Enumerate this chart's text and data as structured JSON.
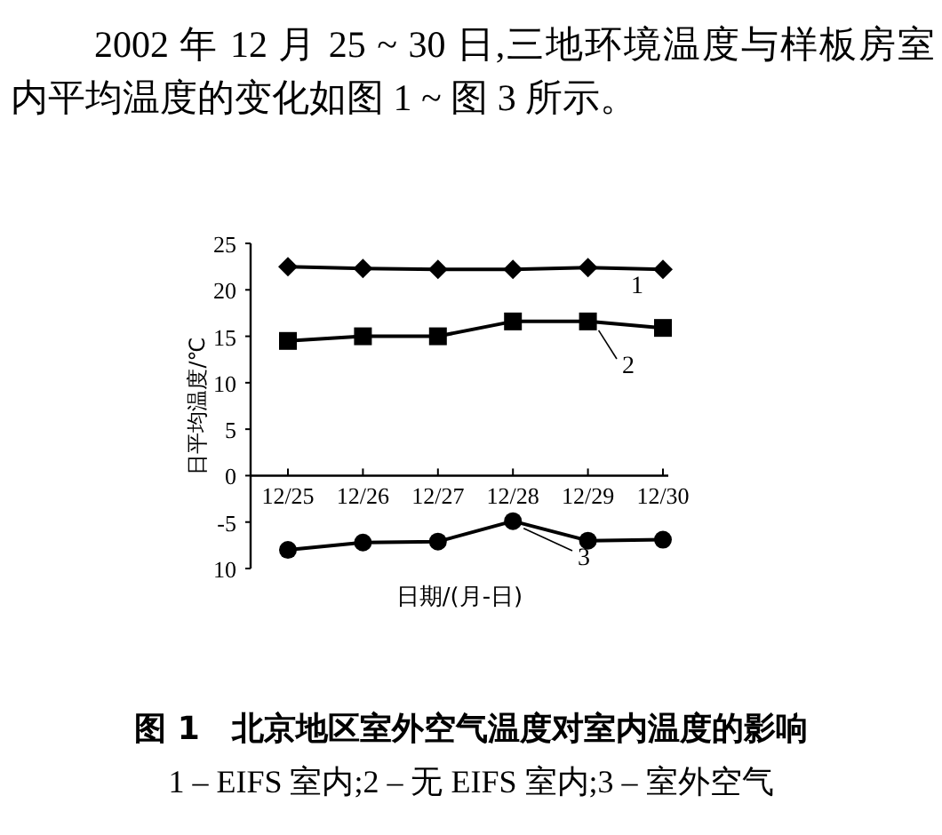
{
  "chart_data": {
    "type": "line",
    "title": "图 1　北京地区室外空气温度对室内温度的影响",
    "subtitle": "1 – EIFS 室内;2 – 无 EIFS 室内;3 – 室外空气",
    "annotations": [
      "2002 年 12 月 25 ~ 30 日,三地环境温度与样板房室内平均温度的变化如图 1 ~ 图 3 所示。"
    ],
    "xlabel": "日期/(月-日)",
    "ylabel": "日平均温度/℃",
    "categories": [
      "12/25",
      "12/26",
      "12/27",
      "12/28",
      "12/29",
      "12/30"
    ],
    "ylim": [
      -10,
      25
    ],
    "yticks": [
      {
        "value": -10,
        "label": "10"
      },
      -5,
      0,
      5,
      10,
      15,
      20,
      25
    ],
    "grid": false,
    "legend": "right",
    "line_style": "solid",
    "series": [
      {
        "name": "1",
        "color": "#000000",
        "marker": "diamond",
        "values": [
          22.5,
          22.3,
          22.2,
          22.2,
          22.4,
          22.2
        ]
      },
      {
        "name": "2",
        "color": "#000000",
        "marker": "square",
        "values": [
          14.5,
          15,
          15,
          16.6,
          16.6,
          15.9
        ]
      },
      {
        "name": "3",
        "color": "#000000",
        "marker": "circle",
        "values": [
          -8,
          -7.2,
          -7.1,
          -4.9,
          -7,
          -6.9
        ]
      }
    ]
  }
}
